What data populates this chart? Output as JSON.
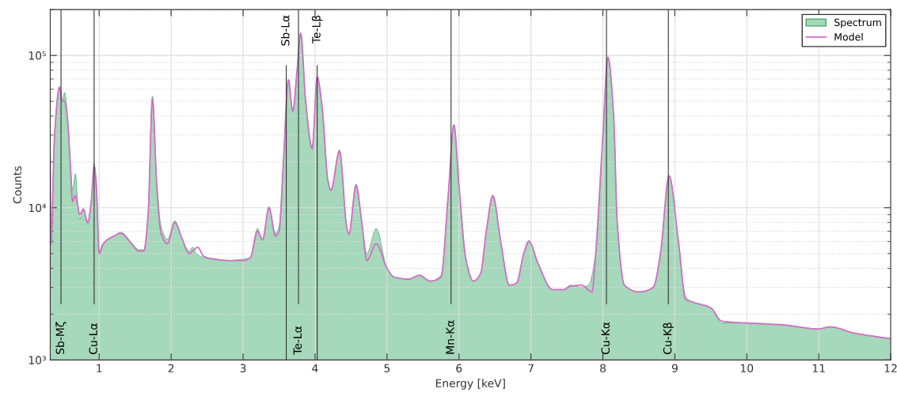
{
  "chart_data": {
    "type": "area",
    "xlabel": "Energy [keV]",
    "ylabel": "Counts",
    "log": "y",
    "grid": true,
    "legend": "top right",
    "xlim": [
      0.32,
      12
    ],
    "xticks": [
      1,
      2,
      3,
      4,
      5,
      6,
      7,
      8,
      9,
      10,
      11,
      12
    ],
    "ylim": [
      1000,
      200000
    ],
    "yticks": [
      {
        "value": 1000,
        "label": "10³"
      },
      {
        "value": 10000,
        "label": "10⁴"
      },
      {
        "value": 100000,
        "label": "10⁵"
      }
    ],
    "series": [
      {
        "name": "Spectrum",
        "color": "#a6d8bb",
        "x": [
          0.32,
          0.33,
          0.38,
          0.45,
          0.49,
          0.52,
          0.56,
          0.6,
          0.63,
          0.67,
          0.7,
          0.73,
          0.78,
          0.84,
          0.89,
          0.93,
          0.96,
          1.0,
          1.05,
          1.1,
          1.2,
          1.3,
          1.45,
          1.55,
          1.62,
          1.68,
          1.74,
          1.8,
          1.86,
          1.95,
          2.05,
          2.15,
          2.25,
          2.3,
          2.35,
          2.45,
          2.6,
          2.8,
          3.0,
          3.1,
          3.2,
          3.27,
          3.36,
          3.45,
          3.5,
          3.56,
          3.63,
          3.69,
          3.75,
          3.8,
          3.87,
          3.96,
          4.03,
          4.1,
          4.18,
          4.22,
          4.34,
          4.44,
          4.47,
          4.57,
          4.65,
          4.72,
          4.85,
          5.0,
          5.1,
          5.3,
          5.45,
          5.6,
          5.75,
          5.85,
          5.93,
          6.0,
          6.1,
          6.2,
          6.3,
          6.38,
          6.47,
          6.58,
          6.7,
          6.8,
          6.9,
          6.97,
          7.1,
          7.3,
          7.45,
          7.55,
          7.7,
          7.8,
          7.9,
          8.0,
          8.07,
          8.15,
          8.2,
          8.3,
          8.5,
          8.7,
          8.8,
          8.92,
          9.05,
          9.15,
          9.25,
          9.5,
          9.65,
          10.0,
          10.5,
          11.0,
          11.15,
          11.5,
          12.0
        ],
        "values": [
          10000,
          5700,
          30000,
          62000,
          50000,
          57000,
          40000,
          20000,
          13000,
          16700,
          11000,
          8400,
          9800,
          7800,
          11000,
          19500,
          15000,
          5200,
          5800,
          6100,
          6500,
          6900,
          5900,
          5300,
          5300,
          9000,
          54000,
          15000,
          7500,
          6200,
          8200,
          6300,
          5200,
          5500,
          5000,
          4700,
          4600,
          4500,
          4600,
          4700,
          7300,
          6000,
          10200,
          6800,
          7500,
          20000,
          70000,
          43000,
          80000,
          140000,
          50000,
          25000,
          73000,
          45000,
          15000,
          13000,
          24000,
          7500,
          6700,
          14300,
          8000,
          5000,
          7300,
          4000,
          3500,
          3400,
          3600,
          3300,
          3600,
          12000,
          35000,
          14000,
          4500,
          3300,
          3700,
          7000,
          12000,
          6000,
          3100,
          3200,
          5000,
          6100,
          4300,
          2900,
          2900,
          3100,
          3000,
          3100,
          5000,
          30000,
          98000,
          40000,
          8000,
          3100,
          2800,
          3000,
          5000,
          16200,
          6000,
          2600,
          2400,
          2200,
          1750,
          1750,
          1700,
          1600,
          1650,
          1500,
          1380
        ]
      },
      {
        "name": "Model",
        "type": "line",
        "color": "#d36fc6",
        "x": [
          0.32,
          0.33,
          0.38,
          0.45,
          0.49,
          0.52,
          0.56,
          0.6,
          0.63,
          0.67,
          0.7,
          0.73,
          0.78,
          0.84,
          0.89,
          0.93,
          0.96,
          1.0,
          1.05,
          1.1,
          1.2,
          1.3,
          1.45,
          1.55,
          1.62,
          1.68,
          1.74,
          1.8,
          1.86,
          1.95,
          2.05,
          2.15,
          2.25,
          2.3,
          2.37,
          2.45,
          2.6,
          2.8,
          3.0,
          3.1,
          3.2,
          3.27,
          3.36,
          3.45,
          3.5,
          3.56,
          3.63,
          3.69,
          3.75,
          3.8,
          3.87,
          3.96,
          4.03,
          4.1,
          4.18,
          4.22,
          4.34,
          4.44,
          4.47,
          4.57,
          4.65,
          4.72,
          4.85,
          5.0,
          5.1,
          5.3,
          5.45,
          5.6,
          5.75,
          5.85,
          5.93,
          6.0,
          6.1,
          6.2,
          6.3,
          6.38,
          6.47,
          6.58,
          6.7,
          6.8,
          6.9,
          6.97,
          7.1,
          7.3,
          7.45,
          7.55,
          7.7,
          7.85,
          7.9,
          8.0,
          8.07,
          8.15,
          8.2,
          8.3,
          8.5,
          8.7,
          8.8,
          8.92,
          9.05,
          9.15,
          9.25,
          9.5,
          9.65,
          10.0,
          10.5,
          11.0,
          11.15,
          11.5,
          12.0
        ],
        "values": [
          22000,
          5800,
          30000,
          62000,
          50000,
          50000,
          38000,
          19000,
          11000,
          12000,
          10500,
          9000,
          9800,
          8000,
          11000,
          18500,
          14000,
          5000,
          5700,
          6100,
          6500,
          6800,
          5800,
          5200,
          5200,
          9000,
          52000,
          14000,
          6800,
          5800,
          8000,
          6300,
          5000,
          5200,
          5500,
          4800,
          4600,
          4500,
          4500,
          4700,
          7000,
          6200,
          10000,
          6500,
          7000,
          20000,
          69000,
          43000,
          80000,
          140000,
          50000,
          24500,
          72000,
          45000,
          15000,
          13000,
          23500,
          7500,
          6700,
          14000,
          8000,
          4500,
          5800,
          4000,
          3500,
          3400,
          3600,
          3300,
          3500,
          12000,
          35000,
          14000,
          4500,
          3300,
          3700,
          7000,
          12000,
          6000,
          3100,
          3200,
          5000,
          6000,
          4300,
          2900,
          2900,
          3050,
          3100,
          2800,
          5000,
          30000,
          97000,
          40000,
          8000,
          3100,
          2800,
          3000,
          5000,
          16200,
          6000,
          2500,
          2400,
          2200,
          1800,
          1750,
          1700,
          1600,
          1650,
          1500,
          1380
        ]
      }
    ],
    "ref_lines": [
      {
        "axis": "x",
        "value": 0.47,
        "label": "Sb-Mζ",
        "color": "#333333"
      },
      {
        "axis": "x",
        "value": 0.93,
        "label": "Cu-Lα",
        "color": "#333333"
      },
      {
        "axis": "x",
        "value": 3.6,
        "label": "Sb-Lα",
        "color": "#333333"
      },
      {
        "axis": "x",
        "value": 3.77,
        "label": "Te-Lα",
        "color": "#333333"
      },
      {
        "axis": "x",
        "value": 4.03,
        "label": "Te-Lβ",
        "color": "#333333"
      },
      {
        "axis": "x",
        "value": 5.89,
        "label": "Mn-Kα",
        "color": "#333333"
      },
      {
        "axis": "x",
        "value": 8.05,
        "label": "Cu-Kα",
        "color": "#333333"
      },
      {
        "axis": "x",
        "value": 8.91,
        "label": "Cu-Kβ",
        "color": "#333333"
      }
    ]
  }
}
